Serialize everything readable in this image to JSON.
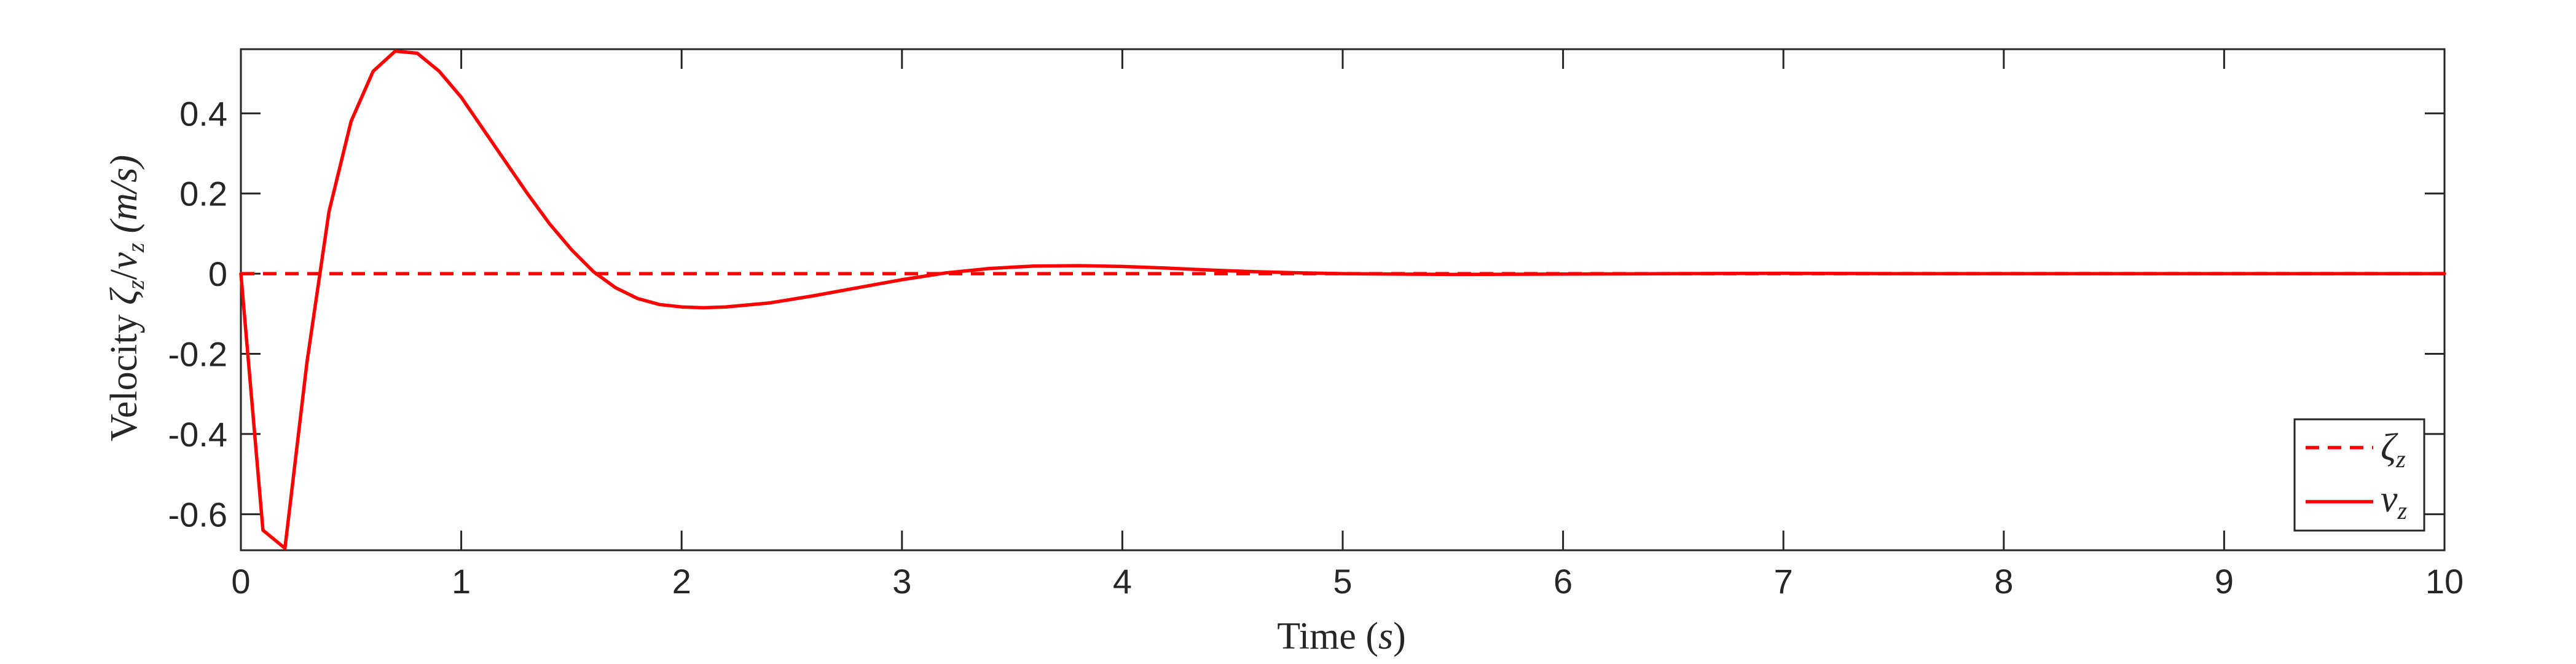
{
  "chart_data": {
    "type": "line",
    "xlabel": {
      "prefix": "Time (",
      "symbol": "s",
      "suffix": ")"
    },
    "ylabel": {
      "prefix": "Velocity ",
      "sym1": "ζ",
      "sub1": "z",
      "sep": "/",
      "sym2": "v",
      "sub2": "z",
      "units": " (m/s)"
    },
    "xlim": [
      0,
      10
    ],
    "ylim": [
      -0.69,
      0.56
    ],
    "x_ticks": [
      0,
      1,
      2,
      3,
      4,
      5,
      6,
      7,
      8,
      9,
      10
    ],
    "y_ticks": [
      -0.6,
      -0.4,
      -0.2,
      0,
      0.2,
      0.4
    ],
    "y_tick_labels": [
      "-0.6",
      "-0.4",
      "-0.2",
      "0",
      "0.2",
      "0.4"
    ],
    "grid": false,
    "legend_position": "bottom-right",
    "series": [
      {
        "legend": {
          "symbol": "ζ",
          "sub": "z"
        },
        "style": "dashed",
        "color": "#ff0000",
        "x": [
          0,
          10
        ],
        "y": [
          0,
          0
        ]
      },
      {
        "legend": {
          "symbol": "v",
          "sub": "z"
        },
        "style": "solid",
        "color": "#ff0000",
        "x": [
          0,
          0.1,
          0.2,
          0.3,
          0.4,
          0.5,
          0.6,
          0.7,
          0.8,
          0.9,
          1.0,
          1.1,
          1.2,
          1.3,
          1.4,
          1.5,
          1.6,
          1.7,
          1.8,
          1.9,
          2.0,
          2.1,
          2.2,
          2.4,
          2.6,
          2.8,
          3.0,
          3.2,
          3.4,
          3.6,
          3.8,
          4.0,
          4.2,
          4.4,
          4.6,
          4.8,
          5.0,
          5.5,
          6.0,
          6.5,
          7.0,
          7.5,
          8.0,
          9.0,
          10.0
        ],
        "y": [
          0,
          -0.64,
          -0.685,
          -0.22,
          0.155,
          0.38,
          0.505,
          0.555,
          0.55,
          0.505,
          0.44,
          0.36,
          0.28,
          0.2,
          0.125,
          0.06,
          0.005,
          -0.035,
          -0.062,
          -0.077,
          -0.083,
          -0.085,
          -0.083,
          -0.073,
          -0.055,
          -0.035,
          -0.015,
          0.002,
          0.013,
          0.019,
          0.02,
          0.018,
          0.014,
          0.009,
          0.005,
          0.002,
          0.0,
          -0.002,
          -0.001,
          0.0,
          0.001,
          0.0,
          0.0,
          0.0,
          0.0
        ]
      }
    ]
  }
}
